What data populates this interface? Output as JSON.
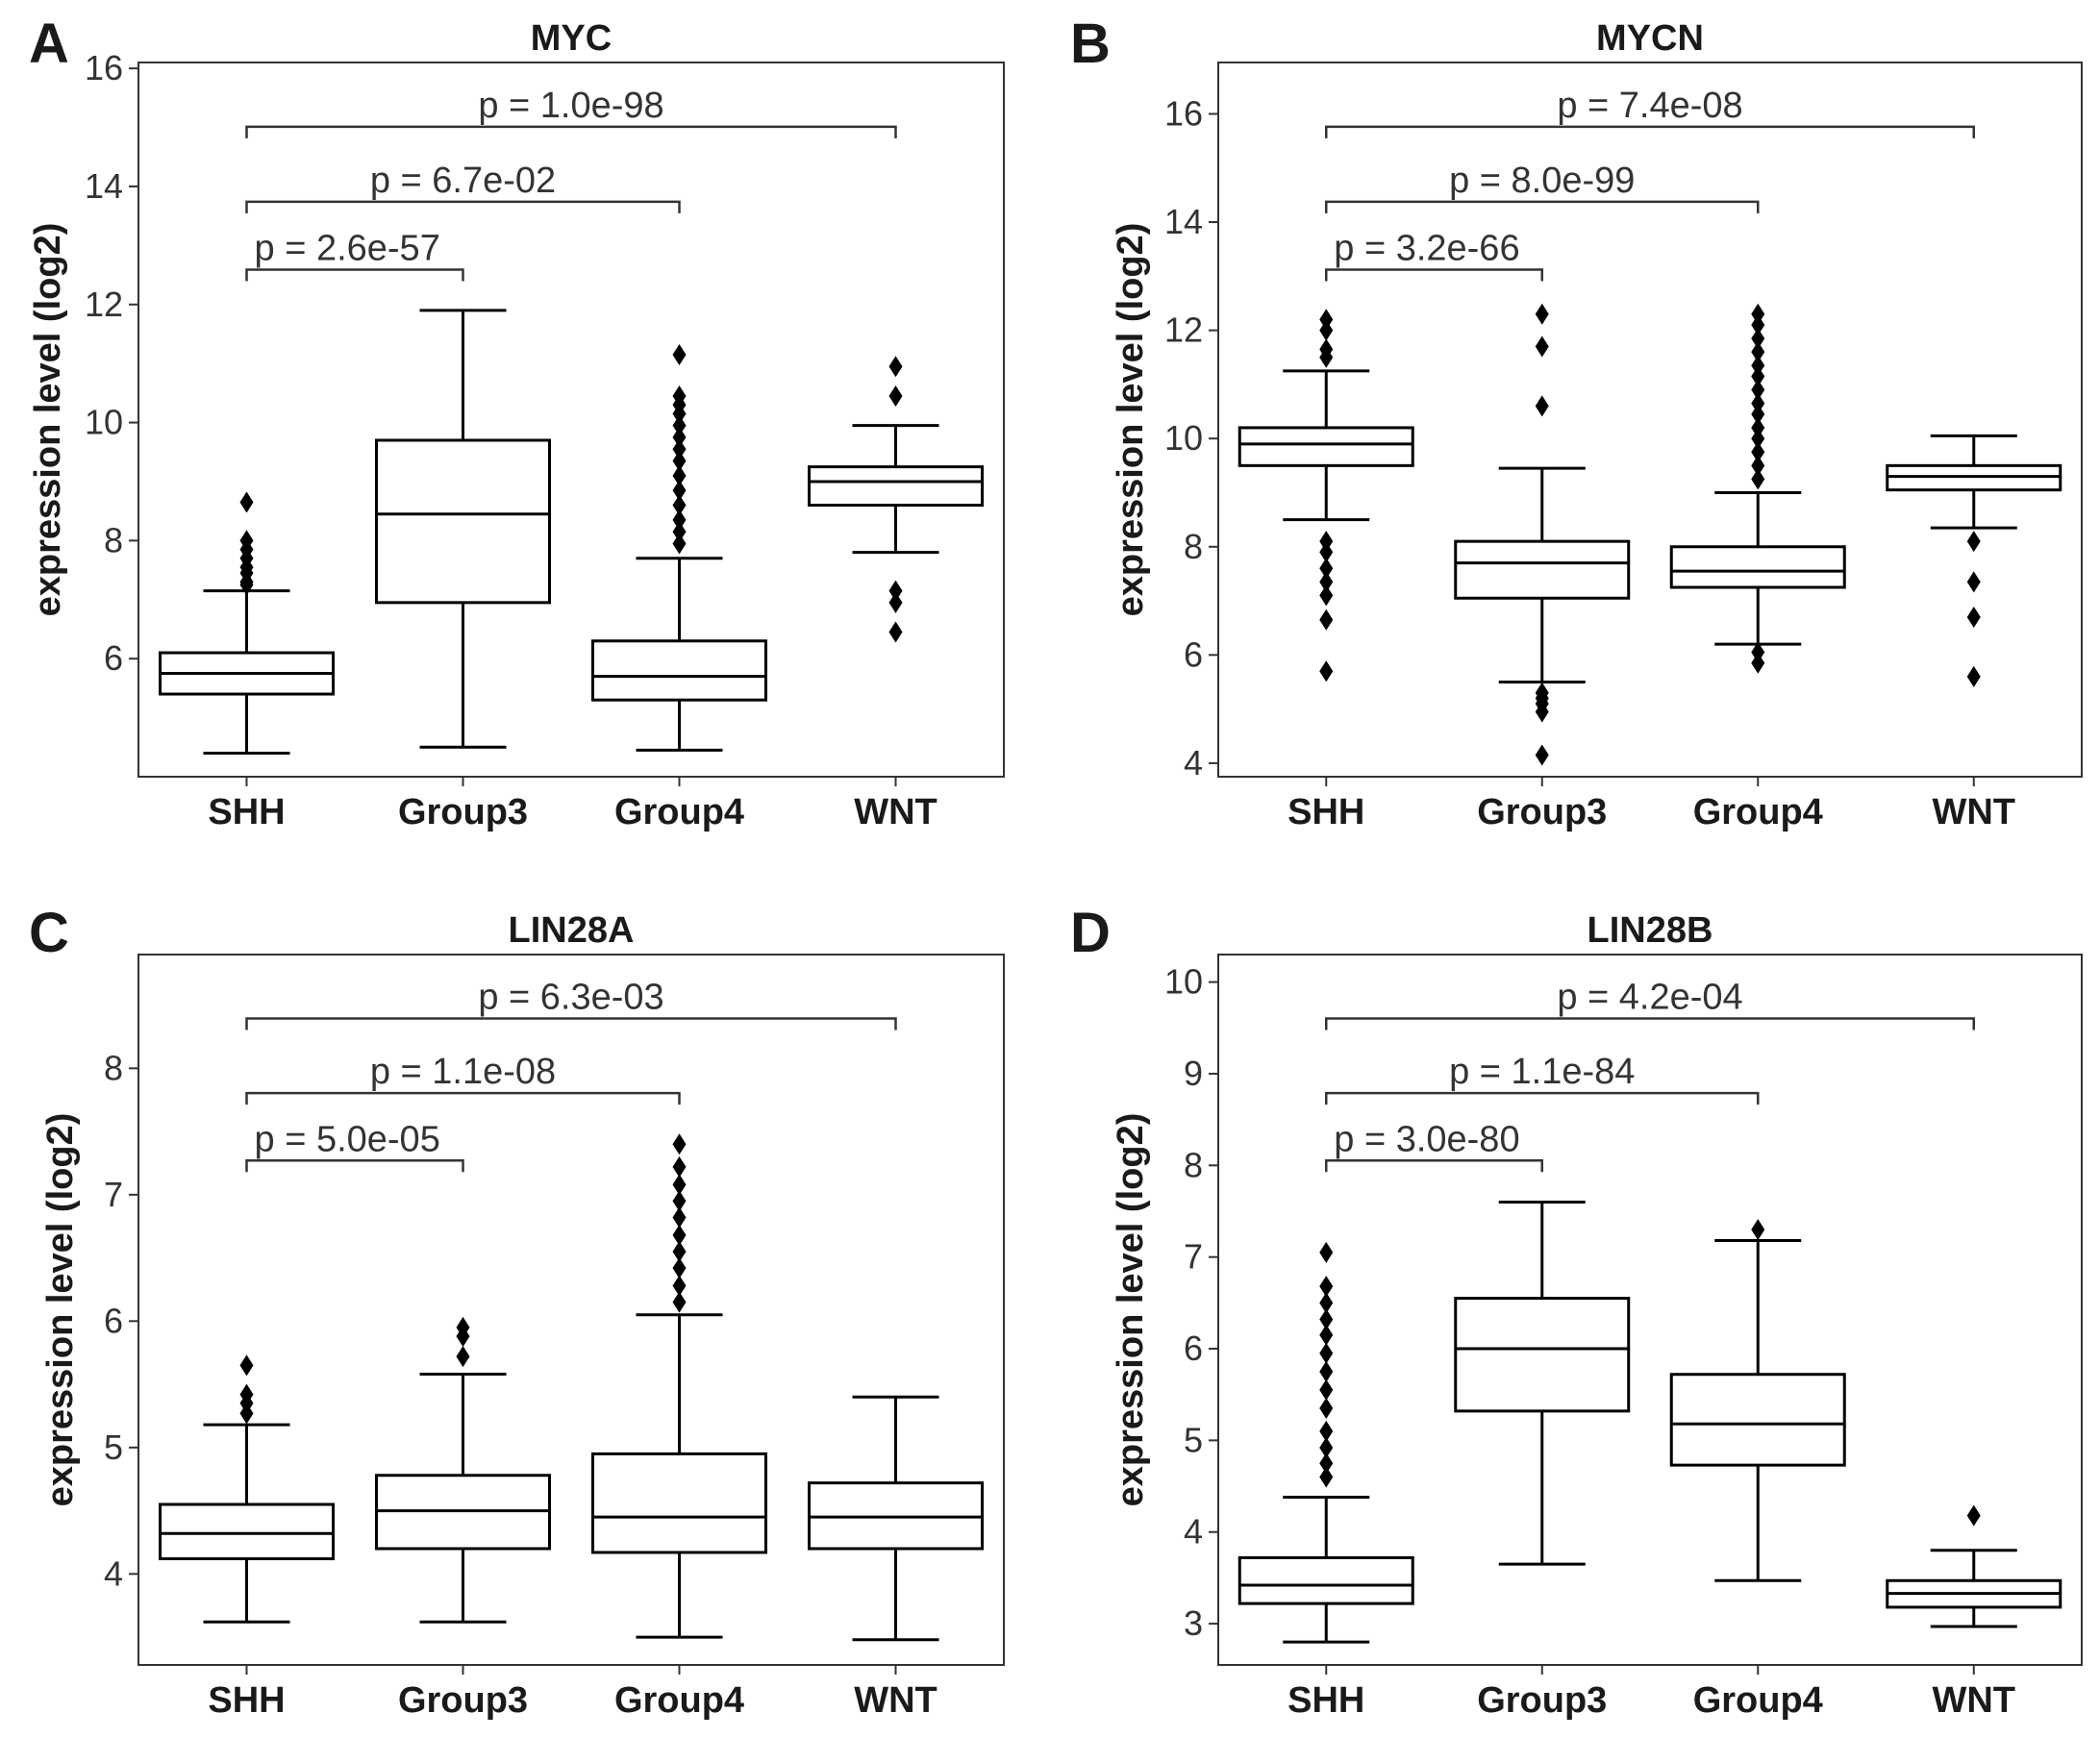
{
  "chart_data": [
    {
      "type": "box",
      "panel_label": "A",
      "title": "MYC",
      "ylabel": "expression level (log2)",
      "xlabel": "",
      "ylim": [
        4.0,
        16.1
      ],
      "yticks": [
        6,
        8,
        10,
        12,
        14,
        16
      ],
      "ytick_labels": [
        "6",
        "8",
        "10",
        "12",
        "14",
        "16"
      ],
      "categories": [
        "SHH",
        "Group3",
        "Group4",
        "WNT"
      ],
      "boxes": [
        {
          "group": "SHH",
          "whisker_low": 4.4,
          "q1": 5.4,
          "median": 5.75,
          "q3": 6.1,
          "whisker_high": 7.15,
          "outliers": [
            7.25,
            7.3,
            7.45,
            7.55,
            7.7,
            7.85,
            8.0,
            8.65
          ]
        },
        {
          "group": "Group3",
          "whisker_low": 4.5,
          "q1": 6.95,
          "median": 8.45,
          "q3": 9.7,
          "whisker_high": 11.9,
          "outliers": []
        },
        {
          "group": "Group4",
          "whisker_low": 4.45,
          "q1": 5.3,
          "median": 5.7,
          "q3": 6.3,
          "whisker_high": 7.7,
          "outliers": [
            7.95,
            8.15,
            8.35,
            8.6,
            8.85,
            9.1,
            9.35,
            9.55,
            9.75,
            9.95,
            10.15,
            10.3,
            10.45,
            11.15
          ]
        },
        {
          "group": "WNT",
          "whisker_low": 7.8,
          "q1": 8.6,
          "median": 9.0,
          "q3": 9.25,
          "whisker_high": 9.95,
          "outliers": [
            6.45,
            6.95,
            7.15,
            10.45,
            10.95
          ]
        }
      ],
      "comparisons": [
        {
          "from": "SHH",
          "to": "Group3",
          "label": "p = 2.6e-57"
        },
        {
          "from": "SHH",
          "to": "Group4",
          "label": "p = 6.7e-02"
        },
        {
          "from": "SHH",
          "to": "WNT",
          "label": "p = 1.0e-98"
        }
      ]
    },
    {
      "type": "box",
      "panel_label": "B",
      "title": "MYCN",
      "ylabel": "expression level (log2)",
      "xlabel": "",
      "ylim": [
        3.75,
        16.95
      ],
      "yticks": [
        4,
        6,
        8,
        10,
        12,
        14,
        16
      ],
      "ytick_labels": [
        "4",
        "6",
        "8",
        "10",
        "12",
        "14",
        "16"
      ],
      "categories": [
        "SHH",
        "Group3",
        "Group4",
        "WNT"
      ],
      "boxes": [
        {
          "group": "SHH",
          "whisker_low": 8.5,
          "q1": 9.5,
          "median": 9.9,
          "q3": 10.2,
          "whisker_high": 11.25,
          "outliers": [
            5.7,
            6.65,
            7.1,
            7.35,
            7.6,
            7.9,
            8.1,
            11.5,
            11.65,
            12.0,
            12.2
          ]
        },
        {
          "group": "Group3",
          "whisker_low": 5.5,
          "q1": 7.05,
          "median": 7.7,
          "q3": 8.1,
          "whisker_high": 9.45,
          "outliers": [
            4.15,
            4.95,
            5.1,
            5.2,
            5.3,
            10.6,
            11.7,
            12.3
          ]
        },
        {
          "group": "Group4",
          "whisker_low": 6.2,
          "q1": 7.25,
          "median": 7.55,
          "q3": 8.0,
          "whisker_high": 9.0,
          "outliers": [
            5.85,
            6.05,
            9.25,
            9.5,
            9.75,
            10.0,
            10.2,
            10.45,
            10.65,
            10.9,
            11.15,
            11.35,
            11.6,
            11.85,
            12.1,
            12.3
          ]
        },
        {
          "group": "WNT",
          "whisker_low": 8.35,
          "q1": 9.05,
          "median": 9.3,
          "q3": 9.5,
          "whisker_high": 10.05,
          "outliers": [
            5.6,
            6.7,
            7.35,
            8.1
          ]
        }
      ],
      "comparisons": [
        {
          "from": "SHH",
          "to": "Group3",
          "label": "p = 3.2e-66"
        },
        {
          "from": "SHH",
          "to": "Group4",
          "label": "p = 8.0e-99"
        },
        {
          "from": "SHH",
          "to": "WNT",
          "label": "p = 7.4e-08"
        }
      ]
    },
    {
      "type": "box",
      "panel_label": "C",
      "title": "LIN28A",
      "ylabel": "expression level (log2)",
      "xlabel": "",
      "ylim": [
        3.28,
        8.9
      ],
      "yticks": [
        4,
        5,
        6,
        7,
        8
      ],
      "ytick_labels": [
        "4",
        "5",
        "6",
        "7",
        "8"
      ],
      "categories": [
        "SHH",
        "Group3",
        "Group4",
        "WNT"
      ],
      "boxes": [
        {
          "group": "SHH",
          "whisker_low": 3.62,
          "q1": 4.12,
          "median": 4.32,
          "q3": 4.55,
          "whisker_high": 5.18,
          "outliers": [
            5.27,
            5.35,
            5.42,
            5.65
          ]
        },
        {
          "group": "Group3",
          "whisker_low": 3.62,
          "q1": 4.2,
          "median": 4.5,
          "q3": 4.78,
          "whisker_high": 5.58,
          "outliers": [
            5.72,
            5.88,
            5.95
          ]
        },
        {
          "group": "Group4",
          "whisker_low": 3.5,
          "q1": 4.17,
          "median": 4.45,
          "q3": 4.95,
          "whisker_high": 6.05,
          "outliers": [
            6.15,
            6.28,
            6.42,
            6.55,
            6.68,
            6.82,
            6.95,
            7.08,
            7.22,
            7.4
          ]
        },
        {
          "group": "WNT",
          "whisker_low": 3.48,
          "q1": 4.2,
          "median": 4.45,
          "q3": 4.72,
          "whisker_high": 5.4,
          "outliers": []
        }
      ],
      "comparisons": [
        {
          "from": "SHH",
          "to": "Group3",
          "label": "p = 5.0e-05"
        },
        {
          "from": "SHH",
          "to": "Group4",
          "label": "p = 1.1e-08"
        },
        {
          "from": "SHH",
          "to": "WNT",
          "label": "p = 6.3e-03"
        }
      ]
    },
    {
      "type": "box",
      "panel_label": "D",
      "title": "LIN28B",
      "ylabel": "expression level (log2)",
      "xlabel": "",
      "ylim": [
        2.55,
        10.3
      ],
      "yticks": [
        3,
        4,
        5,
        6,
        7,
        8,
        9,
        10
      ],
      "ytick_labels": [
        "3",
        "4",
        "5",
        "6",
        "7",
        "8",
        "9",
        "10"
      ],
      "categories": [
        "SHH",
        "Group3",
        "Group4",
        "WNT"
      ],
      "boxes": [
        {
          "group": "SHH",
          "whisker_low": 2.8,
          "q1": 3.22,
          "median": 3.42,
          "q3": 3.72,
          "whisker_high": 4.38,
          "outliers": [
            4.6,
            4.75,
            4.92,
            5.1,
            5.35,
            5.55,
            5.75,
            5.95,
            6.15,
            6.32,
            6.5,
            6.68,
            7.05
          ]
        },
        {
          "group": "Group3",
          "whisker_low": 3.65,
          "q1": 5.32,
          "median": 6.0,
          "q3": 6.55,
          "whisker_high": 7.6,
          "outliers": []
        },
        {
          "group": "Group4",
          "whisker_low": 3.47,
          "q1": 4.73,
          "median": 5.18,
          "q3": 5.72,
          "whisker_high": 7.18,
          "outliers": [
            7.3
          ]
        },
        {
          "group": "WNT",
          "whisker_low": 2.97,
          "q1": 3.18,
          "median": 3.33,
          "q3": 3.47,
          "whisker_high": 3.8,
          "outliers": [
            4.18
          ]
        }
      ],
      "comparisons": [
        {
          "from": "SHH",
          "to": "Group3",
          "label": "p = 3.0e-80"
        },
        {
          "from": "SHH",
          "to": "Group4",
          "label": "p = 1.1e-84"
        },
        {
          "from": "SHH",
          "to": "WNT",
          "label": "p = 4.2e-04"
        }
      ]
    }
  ]
}
